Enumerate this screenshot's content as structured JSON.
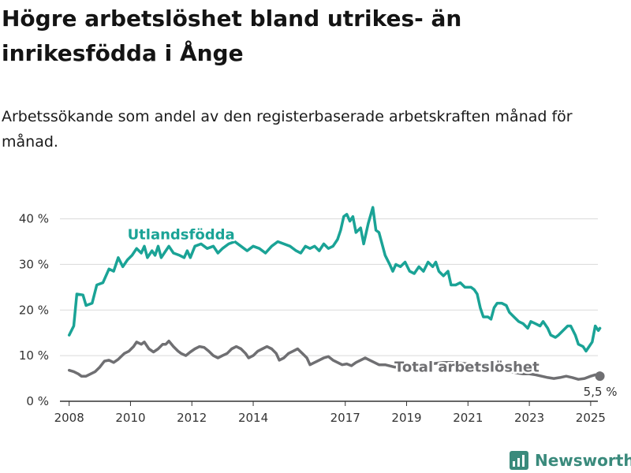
{
  "title": "Högre arbetslöshet bland utrikes- än inrikesfödda i Ånge",
  "subtitle": "Arbetssökande som andel av den registerbaserade arbetskraften månad för månad.",
  "brand": {
    "name": "Newsworthy",
    "icon": "newsworthy-chart-icon",
    "color": "#3a8a7c"
  },
  "chart_data": {
    "type": "line",
    "x_unit": "year",
    "xlim": [
      2007.7,
      2025.8
    ],
    "ylim": [
      0,
      42
    ],
    "grid": true,
    "y_ticks": [
      {
        "value": 0,
        "label": "0 %"
      },
      {
        "value": 10,
        "label": "10 %"
      },
      {
        "value": 20,
        "label": "20 %"
      },
      {
        "value": 30,
        "label": "30 %"
      },
      {
        "value": 40,
        "label": "40 %"
      }
    ],
    "x_ticks": [
      {
        "value": 2008,
        "label": "2008"
      },
      {
        "value": 2010,
        "label": "2010"
      },
      {
        "value": 2012,
        "label": "2012"
      },
      {
        "value": 2014,
        "label": "2014"
      },
      {
        "value": 2017,
        "label": "2017"
      },
      {
        "value": 2019,
        "label": "2019"
      },
      {
        "value": 2021,
        "label": "2021"
      },
      {
        "value": 2023,
        "label": "2023"
      },
      {
        "value": 2025,
        "label": "2025"
      }
    ],
    "series": [
      {
        "name": "Utlandsfödda",
        "color": "#1aa396",
        "label_at": [
          2009.9,
          35.5
        ],
        "points": [
          [
            2008.0,
            14.5
          ],
          [
            2008.15,
            16.5
          ],
          [
            2008.25,
            23.5
          ],
          [
            2008.45,
            23.3
          ],
          [
            2008.55,
            21.0
          ],
          [
            2008.75,
            21.5
          ],
          [
            2008.9,
            25.5
          ],
          [
            2009.1,
            26.0
          ],
          [
            2009.3,
            29.0
          ],
          [
            2009.45,
            28.5
          ],
          [
            2009.6,
            31.5
          ],
          [
            2009.75,
            29.5
          ],
          [
            2009.9,
            31.0
          ],
          [
            2010.05,
            32.0
          ],
          [
            2010.2,
            33.5
          ],
          [
            2010.35,
            32.5
          ],
          [
            2010.45,
            34.0
          ],
          [
            2010.55,
            31.5
          ],
          [
            2010.7,
            33.0
          ],
          [
            2010.8,
            32.0
          ],
          [
            2010.9,
            34.0
          ],
          [
            2011.0,
            31.5
          ],
          [
            2011.15,
            33.0
          ],
          [
            2011.25,
            34.0
          ],
          [
            2011.4,
            32.5
          ],
          [
            2011.6,
            32.0
          ],
          [
            2011.75,
            31.5
          ],
          [
            2011.85,
            33.0
          ],
          [
            2011.95,
            31.5
          ],
          [
            2012.1,
            34.0
          ],
          [
            2012.3,
            34.5
          ],
          [
            2012.5,
            33.5
          ],
          [
            2012.7,
            34.0
          ],
          [
            2012.85,
            32.5
          ],
          [
            2013.0,
            33.5
          ],
          [
            2013.2,
            34.5
          ],
          [
            2013.4,
            35.0
          ],
          [
            2013.6,
            34.0
          ],
          [
            2013.8,
            33.0
          ],
          [
            2014.0,
            34.0
          ],
          [
            2014.2,
            33.5
          ],
          [
            2014.4,
            32.5
          ],
          [
            2014.6,
            34.0
          ],
          [
            2014.8,
            35.0
          ],
          [
            2015.0,
            34.5
          ],
          [
            2015.2,
            34.0
          ],
          [
            2015.4,
            33.0
          ],
          [
            2015.55,
            32.5
          ],
          [
            2015.7,
            34.0
          ],
          [
            2015.85,
            33.5
          ],
          [
            2016.0,
            34.0
          ],
          [
            2016.15,
            33.0
          ],
          [
            2016.3,
            34.5
          ],
          [
            2016.45,
            33.5
          ],
          [
            2016.6,
            34.0
          ],
          [
            2016.75,
            35.5
          ],
          [
            2016.85,
            37.5
          ],
          [
            2016.95,
            40.5
          ],
          [
            2017.05,
            41.0
          ],
          [
            2017.15,
            39.5
          ],
          [
            2017.25,
            40.5
          ],
          [
            2017.35,
            37.0
          ],
          [
            2017.5,
            38.0
          ],
          [
            2017.6,
            34.5
          ],
          [
            2017.75,
            39.0
          ],
          [
            2017.9,
            42.5
          ],
          [
            2018.0,
            37.5
          ],
          [
            2018.1,
            37.0
          ],
          [
            2018.3,
            32.0
          ],
          [
            2018.45,
            30.0
          ],
          [
            2018.55,
            28.5
          ],
          [
            2018.65,
            30.0
          ],
          [
            2018.8,
            29.5
          ],
          [
            2018.95,
            30.5
          ],
          [
            2019.1,
            28.5
          ],
          [
            2019.25,
            28.0
          ],
          [
            2019.4,
            29.5
          ],
          [
            2019.55,
            28.5
          ],
          [
            2019.7,
            30.5
          ],
          [
            2019.85,
            29.5
          ],
          [
            2019.95,
            30.5
          ],
          [
            2020.05,
            28.5
          ],
          [
            2020.2,
            27.5
          ],
          [
            2020.35,
            28.5
          ],
          [
            2020.45,
            25.5
          ],
          [
            2020.6,
            25.5
          ],
          [
            2020.75,
            26.0
          ],
          [
            2020.9,
            25.0
          ],
          [
            2021.1,
            25.0
          ],
          [
            2021.2,
            24.5
          ],
          [
            2021.3,
            23.5
          ],
          [
            2021.4,
            20.5
          ],
          [
            2021.5,
            18.5
          ],
          [
            2021.65,
            18.5
          ],
          [
            2021.75,
            18.0
          ],
          [
            2021.85,
            20.5
          ],
          [
            2021.95,
            21.5
          ],
          [
            2022.1,
            21.5
          ],
          [
            2022.25,
            21.0
          ],
          [
            2022.35,
            19.5
          ],
          [
            2022.5,
            18.5
          ],
          [
            2022.65,
            17.5
          ],
          [
            2022.8,
            17.0
          ],
          [
            2022.95,
            16.0
          ],
          [
            2023.05,
            17.5
          ],
          [
            2023.2,
            17.0
          ],
          [
            2023.35,
            16.5
          ],
          [
            2023.45,
            17.5
          ],
          [
            2023.6,
            16.0
          ],
          [
            2023.7,
            14.5
          ],
          [
            2023.85,
            14.0
          ],
          [
            2023.95,
            14.5
          ],
          [
            2024.1,
            15.5
          ],
          [
            2024.25,
            16.5
          ],
          [
            2024.35,
            16.5
          ],
          [
            2024.5,
            14.5
          ],
          [
            2024.6,
            12.5
          ],
          [
            2024.75,
            12.0
          ],
          [
            2024.85,
            11.0
          ],
          [
            2024.95,
            12.0
          ],
          [
            2025.05,
            13.0
          ],
          [
            2025.15,
            16.5
          ],
          [
            2025.25,
            15.5
          ],
          [
            2025.3,
            16.0
          ]
        ]
      },
      {
        "name": "Total arbetslöshet",
        "color": "#6f6f72",
        "label_at": [
          2018.6,
          6.5
        ],
        "end_value_label": "5,5 %",
        "end_point": [
          2025.3,
          5.5
        ],
        "points": [
          [
            2008.0,
            6.8
          ],
          [
            2008.15,
            6.5
          ],
          [
            2008.3,
            6.0
          ],
          [
            2008.4,
            5.5
          ],
          [
            2008.55,
            5.5
          ],
          [
            2008.7,
            6.0
          ],
          [
            2008.85,
            6.5
          ],
          [
            2009.0,
            7.5
          ],
          [
            2009.15,
            8.8
          ],
          [
            2009.3,
            9.0
          ],
          [
            2009.45,
            8.5
          ],
          [
            2009.6,
            9.2
          ],
          [
            2009.8,
            10.5
          ],
          [
            2009.95,
            11.0
          ],
          [
            2010.1,
            12.0
          ],
          [
            2010.2,
            13.0
          ],
          [
            2010.35,
            12.5
          ],
          [
            2010.45,
            13.0
          ],
          [
            2010.6,
            11.5
          ],
          [
            2010.75,
            10.8
          ],
          [
            2010.9,
            11.5
          ],
          [
            2011.05,
            12.5
          ],
          [
            2011.15,
            12.5
          ],
          [
            2011.25,
            13.2
          ],
          [
            2011.4,
            12.0
          ],
          [
            2011.55,
            11.0
          ],
          [
            2011.65,
            10.5
          ],
          [
            2011.8,
            10.0
          ],
          [
            2011.95,
            10.8
          ],
          [
            2012.1,
            11.5
          ],
          [
            2012.25,
            12.0
          ],
          [
            2012.4,
            11.8
          ],
          [
            2012.55,
            11.0
          ],
          [
            2012.7,
            10.0
          ],
          [
            2012.85,
            9.5
          ],
          [
            2013.0,
            10.0
          ],
          [
            2013.15,
            10.5
          ],
          [
            2013.3,
            11.5
          ],
          [
            2013.45,
            12.0
          ],
          [
            2013.6,
            11.5
          ],
          [
            2013.75,
            10.5
          ],
          [
            2013.85,
            9.5
          ],
          [
            2014.0,
            10.0
          ],
          [
            2014.15,
            11.0
          ],
          [
            2014.3,
            11.5
          ],
          [
            2014.45,
            12.0
          ],
          [
            2014.6,
            11.5
          ],
          [
            2014.75,
            10.5
          ],
          [
            2014.85,
            9.0
          ],
          [
            2015.0,
            9.5
          ],
          [
            2015.15,
            10.5
          ],
          [
            2015.3,
            11.0
          ],
          [
            2015.45,
            11.5
          ],
          [
            2015.6,
            10.5
          ],
          [
            2015.75,
            9.5
          ],
          [
            2015.85,
            8.0
          ],
          [
            2016.0,
            8.5
          ],
          [
            2016.15,
            9.0
          ],
          [
            2016.3,
            9.5
          ],
          [
            2016.45,
            9.8
          ],
          [
            2016.6,
            9.0
          ],
          [
            2016.75,
            8.5
          ],
          [
            2016.9,
            8.0
          ],
          [
            2017.05,
            8.2
          ],
          [
            2017.2,
            7.8
          ],
          [
            2017.35,
            8.5
          ],
          [
            2017.5,
            9.0
          ],
          [
            2017.65,
            9.5
          ],
          [
            2017.8,
            9.0
          ],
          [
            2017.95,
            8.5
          ],
          [
            2018.1,
            8.0
          ],
          [
            2018.3,
            8.0
          ],
          [
            2018.6,
            7.5
          ],
          [
            2019.0,
            7.5
          ],
          [
            2019.4,
            7.8
          ],
          [
            2019.8,
            8.2
          ],
          [
            2020.2,
            8.5
          ],
          [
            2020.6,
            8.5
          ],
          [
            2021.0,
            8.2
          ],
          [
            2021.3,
            7.8
          ],
          [
            2021.6,
            7.5
          ],
          [
            2021.8,
            7.5
          ],
          [
            2022.0,
            7.0
          ],
          [
            2022.2,
            6.8
          ],
          [
            2022.4,
            6.5
          ],
          [
            2022.6,
            6.2
          ],
          [
            2022.8,
            6.0
          ],
          [
            2023.0,
            6.0
          ],
          [
            2023.2,
            5.8
          ],
          [
            2023.4,
            5.5
          ],
          [
            2023.6,
            5.2
          ],
          [
            2023.8,
            5.0
          ],
          [
            2024.0,
            5.2
          ],
          [
            2024.2,
            5.5
          ],
          [
            2024.4,
            5.2
          ],
          [
            2024.6,
            4.8
          ],
          [
            2024.8,
            5.0
          ],
          [
            2025.0,
            5.5
          ],
          [
            2025.15,
            5.8
          ],
          [
            2025.3,
            5.5
          ]
        ]
      }
    ]
  }
}
